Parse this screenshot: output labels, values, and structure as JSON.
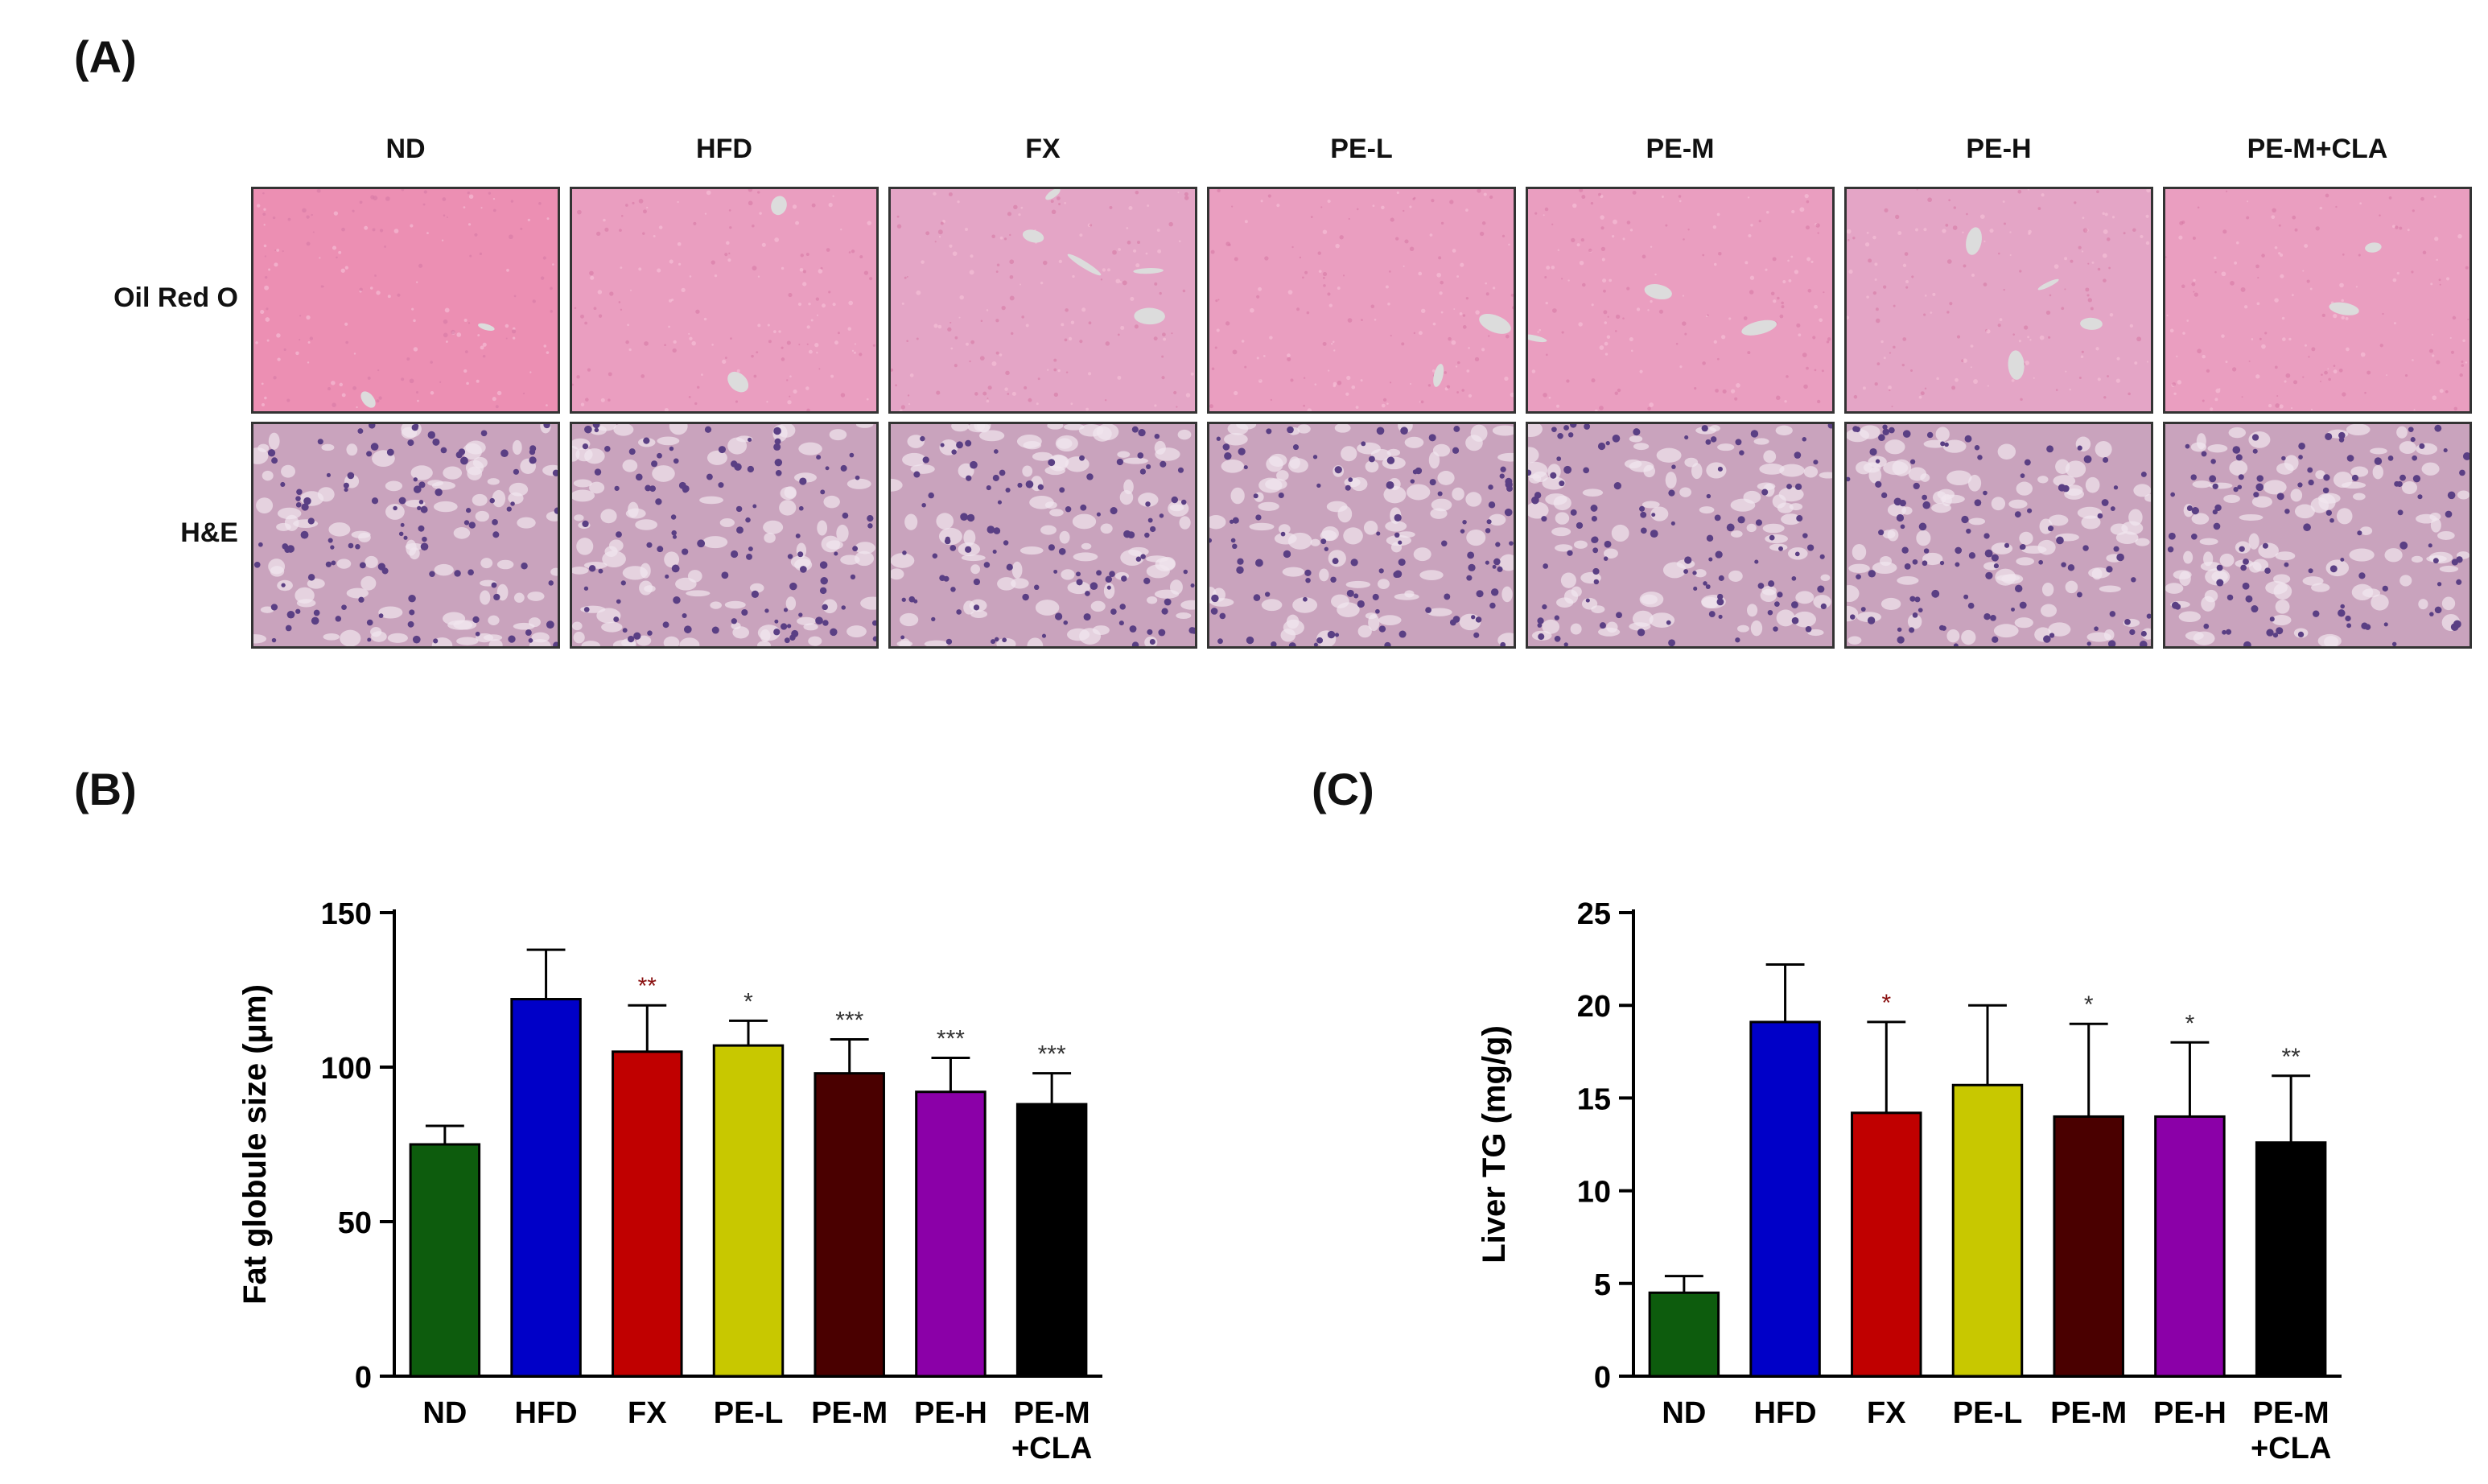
{
  "panels": {
    "a_label": "(A)",
    "b_label": "(B)",
    "c_label": "(C)"
  },
  "histology": {
    "columns": [
      "ND",
      "HFD",
      "FX",
      "PE-L",
      "PE-M",
      "PE-H",
      "PE-M+CLA"
    ],
    "rows": [
      "Oil Red O",
      "H&E"
    ],
    "colors": {
      "oil_red_bg": "#ec8fb3",
      "oil_red_hfd": "#ea9ec0",
      "he_bg": "#c9a3bd",
      "nucleus": "#5a3f84",
      "vessel": "#dcdcdc"
    }
  },
  "chart_data": [
    {
      "type": "bar",
      "panel": "(B)",
      "categories": [
        [
          "ND"
        ],
        [
          "HFD"
        ],
        [
          "FX"
        ],
        [
          "PE-L"
        ],
        [
          "PE-M"
        ],
        [
          "PE-H"
        ],
        [
          "PE-M",
          "+CLA"
        ]
      ],
      "values": [
        75,
        122,
        105,
        107,
        98,
        92,
        88
      ],
      "errors": [
        6,
        16,
        15,
        8,
        11,
        11,
        10
      ],
      "significance": [
        "",
        "",
        "**",
        "*",
        "***",
        "***",
        "***"
      ],
      "colors": [
        "#0d5c0d",
        "#0000c8",
        "#c00000",
        "#c8c800",
        "#4a0000",
        "#8b00a8",
        "#000000"
      ],
      "ylabel": "Fat globule size (μm)",
      "ylim": [
        0,
        150
      ],
      "yticks": [
        0,
        50,
        100,
        150
      ],
      "grid": false
    },
    {
      "type": "bar",
      "panel": "(C)",
      "categories": [
        [
          "ND"
        ],
        [
          "HFD"
        ],
        [
          "FX"
        ],
        [
          "PE-L"
        ],
        [
          "PE-M"
        ],
        [
          "PE-H"
        ],
        [
          "PE-M",
          "+CLA"
        ]
      ],
      "values": [
        4.5,
        19.1,
        14.2,
        15.7,
        14.0,
        14.0,
        12.6
      ],
      "errors": [
        0.9,
        3.1,
        4.9,
        4.3,
        5.0,
        4.0,
        3.6
      ],
      "significance": [
        "",
        "",
        "*",
        "",
        "*",
        "*",
        "**"
      ],
      "colors": [
        "#0d5c0d",
        "#0000c8",
        "#c00000",
        "#c8c800",
        "#4a0000",
        "#8b00a8",
        "#000000"
      ],
      "ylabel": "Liver TG (mg/g)",
      "ylim": [
        0,
        25
      ],
      "yticks": [
        0,
        5,
        10,
        15,
        20,
        25
      ],
      "grid": false
    }
  ]
}
